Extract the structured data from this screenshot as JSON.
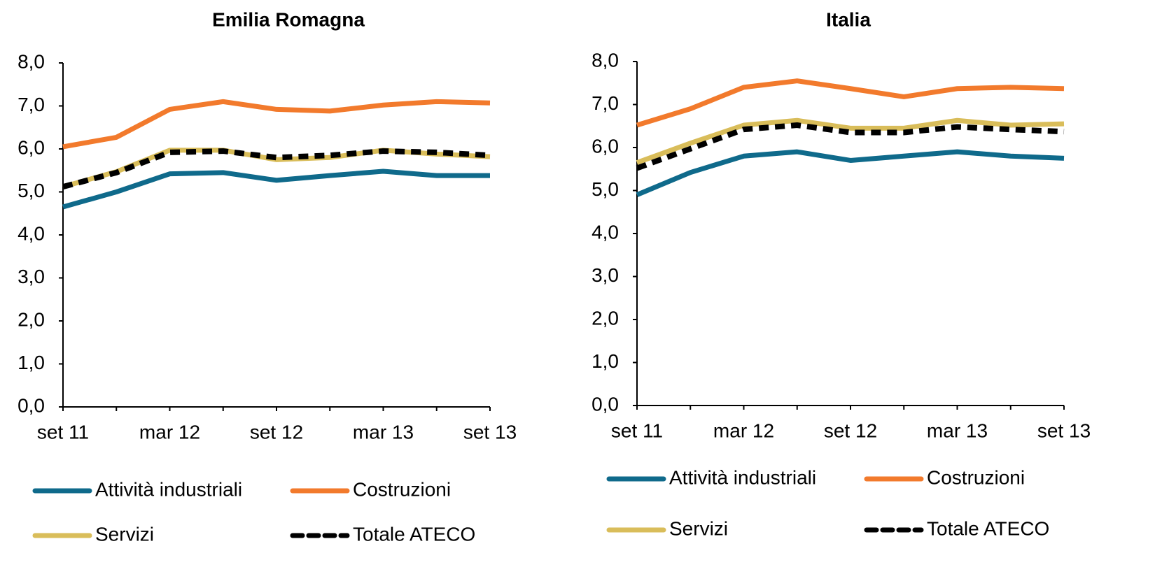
{
  "chart_data": [
    {
      "type": "line",
      "title": "Emilia Romagna",
      "categories": [
        "set 11",
        null,
        "mar 12",
        null,
        "set 12",
        null,
        "mar 13",
        null,
        "set 13"
      ],
      "ylim": [
        0,
        8
      ],
      "yticks": [
        {
          "value": 0,
          "label": "0,0"
        },
        {
          "value": 1,
          "label": "1,0"
        },
        {
          "value": 2,
          "label": "2,0"
        },
        {
          "value": 3,
          "label": "3,0"
        },
        {
          "value": 4,
          "label": "4,0"
        },
        {
          "value": 5,
          "label": "5,0"
        },
        {
          "value": 6,
          "label": "6,0"
        },
        {
          "value": 7,
          "label": "7,0"
        },
        {
          "value": 8,
          "label": "8,0"
        }
      ],
      "series": [
        {
          "name": "Attività industriali",
          "color": "#0f6a8b",
          "values": [
            4.65,
            5.0,
            5.42,
            5.45,
            5.27,
            5.38,
            5.48,
            5.38,
            5.38
          ]
        },
        {
          "name": "Costruzioni",
          "color": "#f27a2c",
          "values": [
            6.05,
            6.27,
            6.92,
            7.1,
            6.92,
            6.88,
            7.02,
            7.1,
            7.07
          ]
        },
        {
          "name": "Servizi",
          "color": "#d9bd5a",
          "values": [
            5.12,
            5.47,
            5.97,
            5.97,
            5.75,
            5.8,
            5.97,
            5.88,
            5.82
          ]
        },
        {
          "name": "Totale ATECO",
          "color": "#000000",
          "dashed": true,
          "values": [
            5.12,
            5.45,
            5.92,
            5.95,
            5.8,
            5.85,
            5.95,
            5.92,
            5.85
          ]
        }
      ]
    },
    {
      "type": "line",
      "title": "Italia",
      "categories": [
        "set 11",
        null,
        "mar 12",
        null,
        "set 12",
        null,
        "mar 13",
        null,
        "set 13"
      ],
      "ylim": [
        0,
        8
      ],
      "yticks": [
        {
          "value": 0,
          "label": "0,0"
        },
        {
          "value": 1,
          "label": "1,0"
        },
        {
          "value": 2,
          "label": "2,0"
        },
        {
          "value": 3,
          "label": "3,0"
        },
        {
          "value": 4,
          "label": "4,0"
        },
        {
          "value": 5,
          "label": "5,0"
        },
        {
          "value": 6,
          "label": "6,0"
        },
        {
          "value": 7,
          "label": "7,0"
        },
        {
          "value": 8,
          "label": "8,0"
        }
      ],
      "series": [
        {
          "name": "Attività industriali",
          "color": "#0f6a8b",
          "values": [
            4.9,
            5.42,
            5.8,
            5.9,
            5.7,
            5.8,
            5.9,
            5.8,
            5.75
          ]
        },
        {
          "name": "Costruzioni",
          "color": "#f27a2c",
          "values": [
            6.52,
            6.9,
            7.4,
            7.55,
            7.37,
            7.18,
            7.37,
            7.4,
            7.37
          ]
        },
        {
          "name": "Servizi",
          "color": "#d9bd5a",
          "values": [
            5.65,
            6.1,
            6.52,
            6.63,
            6.45,
            6.45,
            6.63,
            6.52,
            6.55
          ]
        },
        {
          "name": "Totale ATECO",
          "color": "#000000",
          "dashed": true,
          "values": [
            5.52,
            5.97,
            6.42,
            6.52,
            6.35,
            6.35,
            6.48,
            6.42,
            6.37
          ]
        }
      ]
    }
  ]
}
